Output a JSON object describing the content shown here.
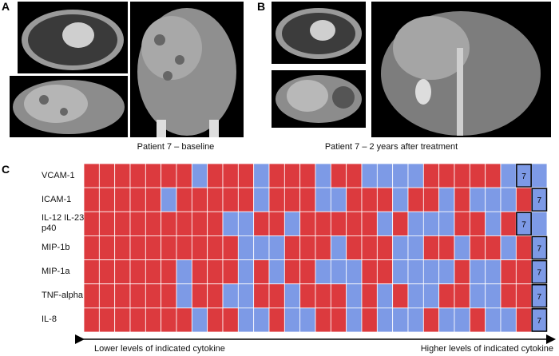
{
  "panels": {
    "a": {
      "letter": "A",
      "caption": "Patient 7 – baseline"
    },
    "b": {
      "letter": "B",
      "caption": "Patient 7 – 2 years after treatment"
    }
  },
  "heatmap": {
    "letter": "C",
    "colors": [
      "#dc3a3e",
      "#7d9ae6"
    ],
    "rows": [
      {
        "label": "VCAM-1",
        "cells": [
          0,
          0,
          0,
          0,
          0,
          0,
          0,
          1,
          0,
          0,
          0,
          1,
          0,
          0,
          0,
          1,
          0,
          0,
          1,
          1,
          1,
          1,
          0,
          0,
          0,
          0,
          0,
          1,
          1,
          1
        ],
        "marker": "7",
        "marker_column": 28
      },
      {
        "label": "ICAM-1",
        "cells": [
          0,
          0,
          0,
          0,
          0,
          1,
          0,
          0,
          0,
          0,
          0,
          1,
          0,
          0,
          0,
          1,
          1,
          0,
          0,
          0,
          1,
          0,
          0,
          1,
          0,
          1,
          1,
          1,
          0,
          1
        ],
        "marker": "7",
        "marker_column": 29
      },
      {
        "label": "IL-12 IL-23\np40",
        "cells": [
          0,
          0,
          0,
          0,
          0,
          0,
          0,
          0,
          0,
          1,
          1,
          0,
          0,
          1,
          0,
          0,
          0,
          0,
          0,
          1,
          0,
          1,
          1,
          1,
          0,
          0,
          1,
          0,
          1,
          1
        ],
        "marker": "7",
        "marker_column": 28
      },
      {
        "label": "MIP-1b",
        "cells": [
          0,
          0,
          0,
          0,
          0,
          0,
          0,
          0,
          0,
          0,
          1,
          1,
          1,
          0,
          0,
          0,
          1,
          0,
          0,
          0,
          1,
          1,
          0,
          0,
          1,
          0,
          0,
          1,
          0,
          1
        ],
        "marker": "7",
        "marker_column": 29
      },
      {
        "label": "MIP-1a",
        "cells": [
          0,
          0,
          0,
          0,
          0,
          0,
          1,
          0,
          0,
          0,
          1,
          0,
          1,
          0,
          0,
          1,
          1,
          1,
          0,
          0,
          1,
          1,
          1,
          1,
          0,
          1,
          1,
          0,
          0,
          1
        ],
        "marker": "7",
        "marker_column": 29
      },
      {
        "label": "TNF-alpha",
        "cells": [
          0,
          0,
          0,
          0,
          0,
          0,
          1,
          0,
          0,
          1,
          1,
          0,
          0,
          1,
          0,
          0,
          0,
          1,
          0,
          1,
          0,
          1,
          1,
          0,
          0,
          1,
          1,
          0,
          0,
          1
        ],
        "marker": "7",
        "marker_column": 29
      },
      {
        "label": "IL-8",
        "cells": [
          0,
          0,
          0,
          0,
          0,
          0,
          0,
          1,
          0,
          0,
          1,
          1,
          0,
          1,
          1,
          0,
          0,
          1,
          0,
          1,
          1,
          1,
          0,
          1,
          1,
          0,
          1,
          1,
          0,
          1
        ],
        "marker": "7",
        "marker_column": 29
      }
    ],
    "left_caption": "Lower levels of indicated cytokine",
    "right_caption": "Higher levels of indicated cytokine"
  }
}
